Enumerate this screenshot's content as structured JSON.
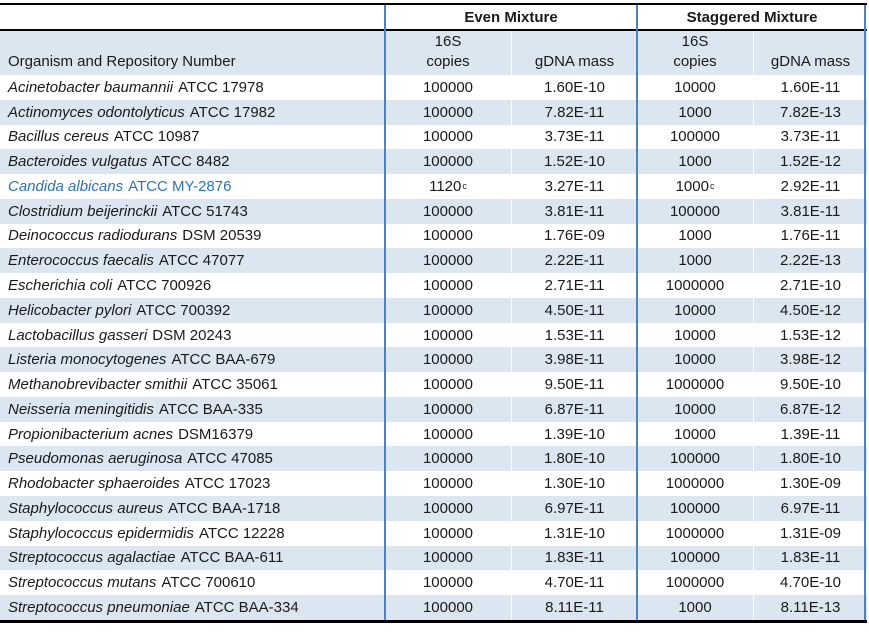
{
  "table": {
    "groups": [
      {
        "label": "Even Mixture"
      },
      {
        "label": "Staggered Mixture"
      }
    ],
    "organism_header": "Organism and Repository Number",
    "sub": {
      "line1": "16S",
      "copies": "copies",
      "mass": "gDNA mass"
    },
    "rows": [
      {
        "organism": "Acinetobacter baumannii",
        "strain": "ATCC 17978",
        "even_copies": "100000",
        "even_mass": "1.60E-10",
        "stag_copies": "10000",
        "stag_mass": "1.60E-11"
      },
      {
        "organism": "Actinomyces odontolyticus",
        "strain": "ATCC 17982",
        "even_copies": "100000",
        "even_mass": "7.82E-11",
        "stag_copies": "1000",
        "stag_mass": "7.82E-13"
      },
      {
        "organism": "Bacillus cereus",
        "strain": "ATCC 10987",
        "even_copies": "100000",
        "even_mass": "3.73E-11",
        "stag_copies": "100000",
        "stag_mass": "3.73E-11"
      },
      {
        "organism": "Bacteroides vulgatus",
        "strain": "ATCC 8482",
        "even_copies": "100000",
        "even_mass": "1.52E-10",
        "stag_copies": "1000",
        "stag_mass": "1.52E-12"
      },
      {
        "organism": "Candida albicans",
        "strain": "ATCC MY-2876",
        "even_copies": "1120",
        "even_copies_sup": "c",
        "even_mass": "3.27E-11",
        "stag_copies": "1000",
        "stag_copies_sup": "c",
        "stag_mass": "2.92E-11",
        "highlight": true
      },
      {
        "organism": "Clostridium beijerinckii",
        "strain": "ATCC 51743",
        "even_copies": "100000",
        "even_mass": "3.81E-11",
        "stag_copies": "100000",
        "stag_mass": "3.81E-11"
      },
      {
        "organism": "Deinococcus radiodurans",
        "strain": "DSM 20539",
        "even_copies": "100000",
        "even_mass": "1.76E-09",
        "stag_copies": "1000",
        "stag_mass": "1.76E-11"
      },
      {
        "organism": "Enterococcus faecalis",
        "strain": "ATCC 47077",
        "even_copies": "100000",
        "even_mass": "2.22E-11",
        "stag_copies": "1000",
        "stag_mass": "2.22E-13"
      },
      {
        "organism": "Escherichia coli",
        "strain": "ATCC 700926",
        "even_copies": "100000",
        "even_mass": "2.71E-11",
        "stag_copies": "1000000",
        "stag_mass": "2.71E-10"
      },
      {
        "organism": "Helicobacter pylori",
        "strain": "ATCC 700392",
        "even_copies": "100000",
        "even_mass": "4.50E-11",
        "stag_copies": "10000",
        "stag_mass": "4.50E-12"
      },
      {
        "organism": "Lactobacillus gasseri",
        "strain": "DSM 20243",
        "even_copies": "100000",
        "even_mass": "1.53E-11",
        "stag_copies": "10000",
        "stag_mass": "1.53E-12"
      },
      {
        "organism": "Listeria monocytogenes",
        "strain": "ATCC BAA-679",
        "even_copies": "100000",
        "even_mass": "3.98E-11",
        "stag_copies": "10000",
        "stag_mass": "3.98E-12"
      },
      {
        "organism": "Methanobrevibacter smithii",
        "strain": "ATCC 35061",
        "even_copies": "100000",
        "even_mass": "9.50E-11",
        "stag_copies": "1000000",
        "stag_mass": "9.50E-10"
      },
      {
        "organism": "Neisseria meningitidis",
        "strain": "ATCC BAA-335",
        "even_copies": "100000",
        "even_mass": "6.87E-11",
        "stag_copies": "10000",
        "stag_mass": "6.87E-12"
      },
      {
        "organism": "Propionibacterium acnes",
        "strain": "DSM16379",
        "even_copies": "100000",
        "even_mass": "1.39E-10",
        "stag_copies": "10000",
        "stag_mass": "1.39E-11"
      },
      {
        "organism": "Pseudomonas aeruginosa",
        "strain": "ATCC 47085",
        "even_copies": "100000",
        "even_mass": "1.80E-10",
        "stag_copies": "100000",
        "stag_mass": "1.80E-10"
      },
      {
        "organism": "Rhodobacter sphaeroides",
        "strain": "ATCC 17023",
        "even_copies": "100000",
        "even_mass": "1.30E-10",
        "stag_copies": "1000000",
        "stag_mass": "1.30E-09"
      },
      {
        "organism": "Staphylococcus aureus",
        "strain": "ATCC BAA-1718",
        "even_copies": "100000",
        "even_mass": "6.97E-11",
        "stag_copies": "100000",
        "stag_mass": "6.97E-11"
      },
      {
        "organism": "Staphylococcus epidermidis",
        "strain": "ATCC 12228",
        "even_copies": "100000",
        "even_mass": "1.31E-10",
        "stag_copies": "1000000",
        "stag_mass": "1.31E-09"
      },
      {
        "organism": "Streptococcus agalactiae",
        "strain": "ATCC BAA-611",
        "even_copies": "100000",
        "even_mass": "1.83E-11",
        "stag_copies": "100000",
        "stag_mass": "1.83E-11"
      },
      {
        "organism": "Streptococcus mutans",
        "strain": "ATCC 700610",
        "even_copies": "100000",
        "even_mass": "4.70E-11",
        "stag_copies": "1000000",
        "stag_mass": "4.70E-10"
      },
      {
        "organism": "Streptococcus pneumoniae",
        "strain": "ATCC BAA-334",
        "even_copies": "100000",
        "even_mass": "8.11E-11",
        "stag_copies": "1000",
        "stag_mass": "8.11E-13"
      }
    ],
    "colors": {
      "row_alt": "#DCE6F1",
      "grid_line_blue": "#4F81BD",
      "border_black": "#000000",
      "highlight_text": "#2E74B5",
      "text": "#1A1A1A"
    }
  }
}
